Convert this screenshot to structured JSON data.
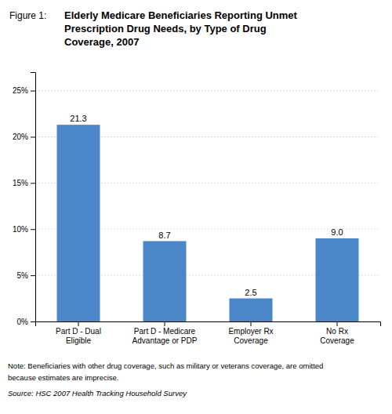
{
  "chart_data": {
    "type": "bar",
    "title": [
      "Elderly Medicare Beneficiaries Reporting Unmet",
      "Prescription Drug Needs, by Type of Drug",
      "Coverage, 2007"
    ],
    "annotations": [
      "Figure 1:",
      "Note: Beneficiaries with other drug coverage, such as military or veterans coverage, are omitted",
      "because estimates are imprecise.",
      "Source: HSC 2007 Health Tracking Household Survey"
    ],
    "categories": [
      "Part D - Dual\nEligible",
      "Part D - Medicare\nAdvantage or PDP",
      "Employer Rx\nCoverage",
      "No Rx\nCoverage"
    ],
    "values": [
      21.3,
      8.7,
      2.5,
      9.0
    ],
    "value_labels": [
      "21.3",
      "8.7",
      "2.5",
      "9.0"
    ],
    "data_labels": true,
    "color": "#4a86c8",
    "ylim": [
      0,
      27
    ],
    "yticks": [
      {
        "value": 0,
        "label": "0%"
      },
      {
        "value": 5,
        "label": "5%"
      },
      {
        "value": 10,
        "label": "10%"
      },
      {
        "value": 15,
        "label": "15%"
      },
      {
        "value": 20,
        "label": "20%"
      },
      {
        "value": 25,
        "label": "25%"
      }
    ],
    "grid": true
  }
}
